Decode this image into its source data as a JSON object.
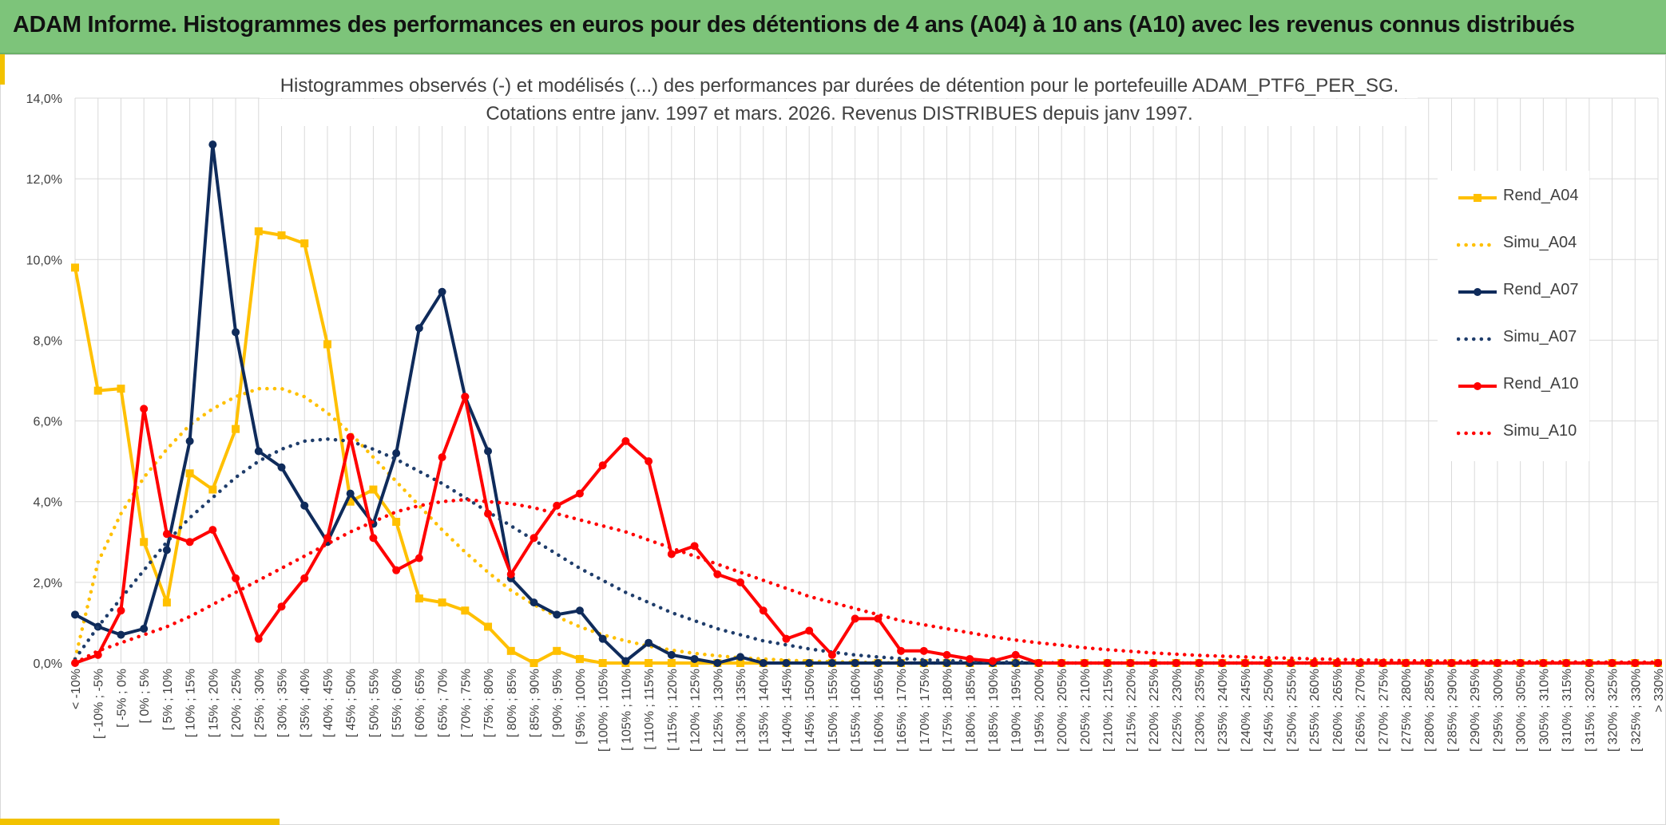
{
  "header": {
    "title": "ADAM Informe. Histogrammes des performances en euros pour des détentions de 4 ans (A04) à 10 ans (A10) avec les revenus connus distribués"
  },
  "colors": {
    "banner": "#7dc47a",
    "accent": "#f2c200",
    "a04": "#ffc000",
    "a07": "#0f2b5b",
    "a10": "#ff0000",
    "grid": "#d9d9d9"
  },
  "chart_data": {
    "type": "line",
    "title_lines": [
      "Histogrammes observés (-) et modélisés (...) des performances par durées de détention pour le portefeuille ADAM_PTF6_PER_SG.",
      "Cotations entre janv. 1997 et mars. 2026. Revenus DISTRIBUES depuis janv 1997."
    ],
    "xlabel": "",
    "ylabel": "",
    "ylim": [
      0,
      14
    ],
    "y_ticks": [
      "0,0%",
      "2,0%",
      "4,0%",
      "6,0%",
      "8,0%",
      "10,0%",
      "12,0%",
      "14,0%"
    ],
    "grid": true,
    "legend_position": "right",
    "categories": [
      "< -10%",
      "[ -10% ; -5%",
      "[ -5% ; 0%",
      "[ 0% ; 5%",
      "[ 5% ; 10%",
      "[ 10% ; 15%",
      "[ 15% ; 20%",
      "[ 20% ; 25%",
      "[ 25% ; 30%",
      "[ 30% ; 35%",
      "[ 35% ; 40%",
      "[ 40% ; 45%",
      "[ 45% ; 50%",
      "[ 50% ; 55%",
      "[ 55% ; 60%",
      "[ 60% ; 65%",
      "[ 65% ; 70%",
      "[ 70% ; 75%",
      "[ 75% ; 80%",
      "[ 80% ; 85%",
      "[ 85% ; 90%",
      "[ 90% ; 95%",
      "[ 95% ; 100%",
      "[ 100% ; 105%",
      "[ 105% ; 110%",
      "[ 110% ; 115%",
      "[ 115% ; 120%",
      "[ 120% ; 125%",
      "[ 125% ; 130%",
      "[ 130% ; 135%",
      "[ 135% ; 140%",
      "[ 140% ; 145%",
      "[ 145% ; 150%",
      "[ 150% ; 155%",
      "[ 155% ; 160%",
      "[ 160% ; 165%",
      "[ 165% ; 170%",
      "[ 170% ; 175%",
      "[ 175% ; 180%",
      "[ 180% ; 185%",
      "[ 185% ; 190%",
      "[ 190% ; 195%",
      "[ 195% ; 200%",
      "[ 200% ; 205%",
      "[ 205% ; 210%",
      "[ 210% ; 215%",
      "[ 215% ; 220%",
      "[ 220% ; 225%",
      "[ 225% ; 230%",
      "[ 230% ; 235%",
      "[ 235% ; 240%",
      "[ 240% ; 245%",
      "[ 245% ; 250%",
      "[ 250% ; 255%",
      "[ 255% ; 260%",
      "[ 260% ; 265%",
      "[ 265% ; 270%",
      "[ 270% ; 275%",
      "[ 275% ; 280%",
      "[ 280% ; 285%",
      "[ 285% ; 290%",
      "[ 290% ; 295%",
      "[ 295% ; 300%",
      "[ 300% ; 305%",
      "[ 305% ; 310%",
      "[ 310% ; 315%",
      "[ 315% ; 320%",
      "[ 320% ; 325%",
      "[ 325% ; 330%",
      "> 330%"
    ],
    "series": [
      {
        "name": "Rend_A04",
        "color": "#ffc000",
        "style": "solid",
        "marker": "square",
        "values": [
          9.8,
          6.75,
          6.8,
          3.0,
          1.5,
          4.7,
          4.3,
          5.8,
          10.7,
          10.6,
          10.4,
          7.9,
          4.0,
          4.3,
          3.5,
          1.6,
          1.5,
          1.3,
          0.9,
          0.3,
          0.0,
          0.3,
          0.1,
          0.0,
          0.0,
          0.0,
          0.0,
          0.0,
          0.0,
          0.0,
          0.0,
          0.0,
          0.0,
          0.0,
          0.0,
          0.0,
          0.0,
          0.0,
          0.0,
          0.0,
          0.0,
          0.0,
          0.0,
          0.0,
          0.0,
          0.0,
          0.0,
          0.0,
          0.0,
          0.0,
          0.0,
          0.0,
          0.0,
          0.0,
          0.0,
          0.0,
          0.0,
          0.0,
          0.0,
          0.0,
          0.0,
          0.0,
          0.0,
          0.0,
          0.0,
          0.0,
          0.0,
          0.0,
          0.0,
          0.0
        ]
      },
      {
        "name": "Simu_A04",
        "color": "#ffc000",
        "style": "dotted",
        "marker": "none",
        "values": [
          0.1,
          2.5,
          3.7,
          4.6,
          5.3,
          5.9,
          6.3,
          6.6,
          6.8,
          6.8,
          6.6,
          6.2,
          5.7,
          5.1,
          4.5,
          3.9,
          3.3,
          2.75,
          2.25,
          1.8,
          1.45,
          1.15,
          0.9,
          0.7,
          0.55,
          0.42,
          0.32,
          0.24,
          0.18,
          0.13,
          0.1,
          0.07,
          0.05,
          0.03,
          0.02,
          0.01,
          0.0,
          0.0,
          0.0,
          0.0,
          0.0,
          0.0,
          0.0,
          0.0,
          0.0,
          0.0,
          0.0,
          0.0,
          0.0,
          0.0,
          0.0,
          0.0,
          0.0,
          0.0,
          0.0,
          0.0,
          0.0,
          0.0,
          0.0,
          0.0,
          0.0,
          0.0,
          0.0,
          0.0,
          0.0,
          0.0,
          0.0,
          0.0,
          0.0,
          0.0
        ]
      },
      {
        "name": "Rend_A07",
        "color": "#0f2b5b",
        "style": "solid",
        "marker": "circle",
        "values": [
          1.2,
          0.9,
          0.7,
          0.85,
          2.8,
          5.5,
          12.85,
          8.2,
          5.25,
          4.85,
          3.9,
          3.0,
          4.2,
          3.45,
          5.2,
          8.3,
          9.2,
          6.6,
          5.25,
          2.1,
          1.5,
          1.2,
          1.3,
          0.6,
          0.05,
          0.5,
          0.2,
          0.1,
          0.0,
          0.15,
          0.0,
          0.0,
          0.0,
          0.0,
          0.0,
          0.0,
          0.0,
          0.0,
          0.0,
          0.0,
          0.0,
          0.0,
          0.0,
          0.0,
          0.0,
          0.0,
          0.0,
          0.0,
          0.0,
          0.0,
          0.0,
          0.0,
          0.0,
          0.0,
          0.0,
          0.0,
          0.0,
          0.0,
          0.0,
          0.0,
          0.0,
          0.0,
          0.0,
          0.0,
          0.0,
          0.0,
          0.0,
          0.0,
          0.0,
          0.0
        ]
      },
      {
        "name": "Simu_A07",
        "color": "#1f3d6b",
        "style": "dotted",
        "marker": "none",
        "values": [
          0.1,
          0.9,
          1.6,
          2.3,
          3.0,
          3.6,
          4.1,
          4.6,
          5.0,
          5.3,
          5.5,
          5.55,
          5.5,
          5.3,
          5.05,
          4.75,
          4.45,
          4.1,
          3.75,
          3.4,
          3.05,
          2.7,
          2.35,
          2.05,
          1.75,
          1.5,
          1.25,
          1.05,
          0.85,
          0.7,
          0.55,
          0.45,
          0.35,
          0.27,
          0.2,
          0.15,
          0.11,
          0.08,
          0.06,
          0.04,
          0.03,
          0.02,
          0.01,
          0.0,
          0.0,
          0.0,
          0.0,
          0.0,
          0.0,
          0.0,
          0.0,
          0.0,
          0.0,
          0.0,
          0.0,
          0.0,
          0.0,
          0.0,
          0.0,
          0.0,
          0.0,
          0.0,
          0.0,
          0.0,
          0.0,
          0.0,
          0.0,
          0.0,
          0.0,
          0.0
        ]
      },
      {
        "name": "Rend_A10",
        "color": "#ff0000",
        "style": "solid",
        "marker": "circle",
        "values": [
          0.0,
          0.2,
          1.3,
          6.3,
          3.2,
          3.0,
          3.3,
          2.1,
          0.6,
          1.4,
          2.1,
          3.1,
          5.6,
          3.1,
          2.3,
          2.6,
          5.1,
          6.6,
          3.7,
          2.2,
          3.1,
          3.9,
          4.2,
          4.9,
          5.5,
          5.0,
          2.7,
          2.9,
          2.2,
          2.0,
          1.3,
          0.6,
          0.8,
          0.2,
          1.1,
          1.1,
          0.3,
          0.3,
          0.2,
          0.1,
          0.05,
          0.2,
          0.0,
          0.0,
          0.0,
          0.0,
          0.0,
          0.0,
          0.0,
          0.0,
          0.0,
          0.0,
          0.0,
          0.0,
          0.0,
          0.0,
          0.0,
          0.0,
          0.0,
          0.0,
          0.0,
          0.0,
          0.0,
          0.0,
          0.0,
          0.0,
          0.0,
          0.0,
          0.0,
          0.0
        ]
      },
      {
        "name": "Simu_A10",
        "color": "#ff0000",
        "style": "dotted",
        "marker": "none",
        "values": [
          0.0,
          0.3,
          0.5,
          0.7,
          0.9,
          1.15,
          1.45,
          1.75,
          2.05,
          2.35,
          2.65,
          2.95,
          3.25,
          3.5,
          3.75,
          3.9,
          4.0,
          4.05,
          4.0,
          3.95,
          3.85,
          3.7,
          3.55,
          3.4,
          3.25,
          3.05,
          2.85,
          2.65,
          2.45,
          2.25,
          2.05,
          1.85,
          1.65,
          1.5,
          1.35,
          1.2,
          1.05,
          0.95,
          0.85,
          0.75,
          0.65,
          0.57,
          0.5,
          0.44,
          0.38,
          0.33,
          0.29,
          0.25,
          0.22,
          0.19,
          0.17,
          0.15,
          0.13,
          0.12,
          0.1,
          0.09,
          0.08,
          0.07,
          0.06,
          0.05,
          0.05,
          0.04,
          0.04,
          0.03,
          0.03,
          0.03,
          0.02,
          0.02,
          0.02,
          0.02
        ]
      }
    ]
  }
}
